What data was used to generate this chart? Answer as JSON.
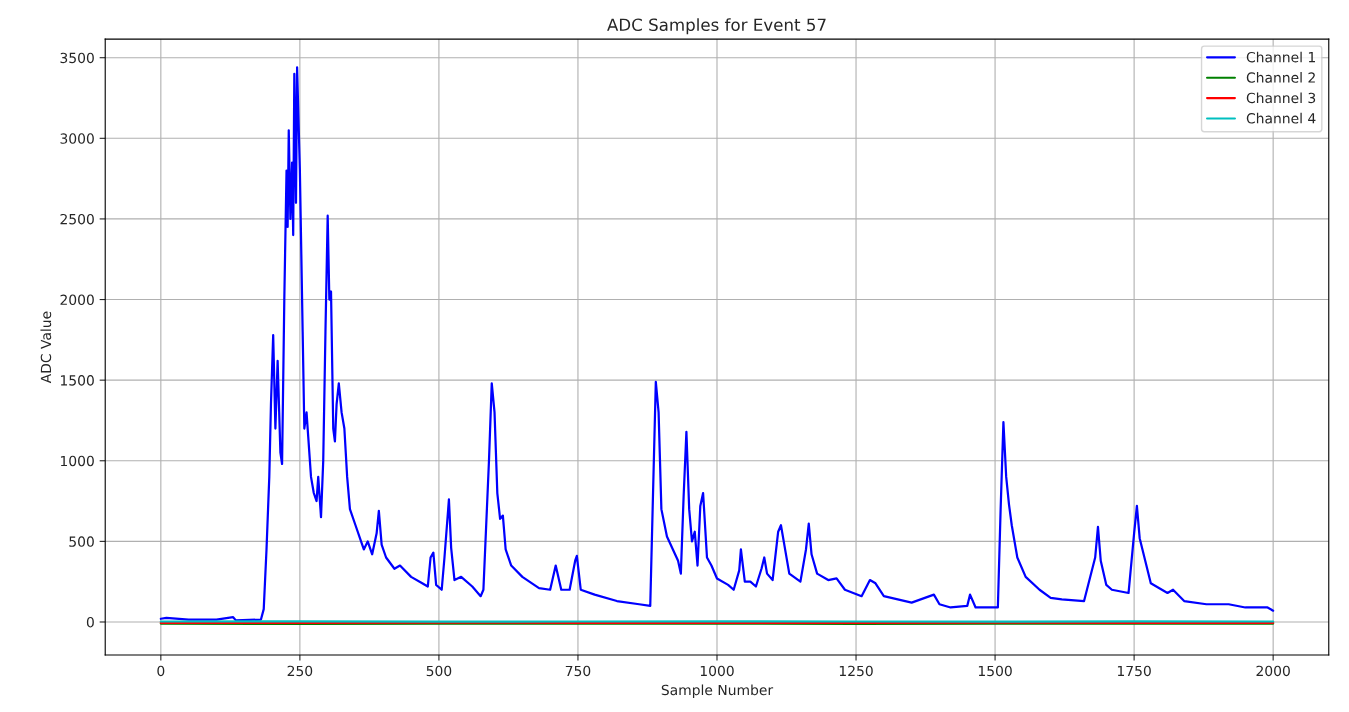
{
  "chart_data": {
    "type": "line",
    "title": "ADC Samples for Event 57",
    "xlabel": "Sample Number",
    "ylabel": "ADC Value",
    "xlim": [
      -100,
      2100
    ],
    "xticks": [
      0,
      250,
      500,
      750,
      1000,
      1250,
      1500,
      1750,
      2000
    ],
    "ylim": [
      -205,
      3615
    ],
    "yticks": [
      0,
      500,
      1000,
      1500,
      2000,
      2500,
      3000,
      3500
    ],
    "grid": true,
    "legend": "top right",
    "line_style": "solid",
    "marker": "none",
    "series": [
      {
        "name": "Channel 1",
        "color": "#0000ff",
        "x": [
          0,
          10,
          50,
          100,
          130,
          135,
          180,
          185,
          190,
          195,
          198,
          202,
          206,
          210,
          215,
          218,
          222,
          226,
          228,
          230,
          233,
          236,
          238,
          240,
          243,
          245,
          250,
          255,
          258,
          262,
          265,
          270,
          275,
          280,
          283,
          288,
          292,
          296,
          300,
          303,
          306,
          310,
          313,
          316,
          320,
          325,
          330,
          335,
          340,
          350,
          360,
          365,
          372,
          380,
          388,
          392,
          397,
          405,
          420,
          430,
          450,
          470,
          480,
          485,
          490,
          495,
          505,
          510,
          518,
          522,
          528,
          540,
          560,
          575,
          580,
          590,
          595,
          600,
          605,
          610,
          615,
          620,
          630,
          650,
          680,
          700,
          710,
          720,
          735,
          745,
          748,
          755,
          780,
          820,
          860,
          880,
          885,
          890,
          895,
          900,
          910,
          930,
          935,
          940,
          945,
          950,
          955,
          960,
          965,
          970,
          975,
          982,
          990,
          1000,
          1020,
          1030,
          1040,
          1043,
          1050,
          1060,
          1070,
          1080,
          1085,
          1090,
          1100,
          1110,
          1115,
          1120,
          1130,
          1150,
          1160,
          1165,
          1170,
          1180,
          1200,
          1215,
          1230,
          1260,
          1275,
          1285,
          1300,
          1350,
          1390,
          1400,
          1420,
          1450,
          1455,
          1465,
          1505,
          1510,
          1515,
          1520,
          1525,
          1530,
          1540,
          1555,
          1580,
          1600,
          1620,
          1660,
          1680,
          1685,
          1690,
          1700,
          1710,
          1740,
          1750,
          1755,
          1760,
          1770,
          1780,
          1800,
          1810,
          1820,
          1840,
          1880,
          1920,
          1950,
          1990,
          2000
        ],
        "values": [
          20,
          25,
          15,
          15,
          30,
          10,
          15,
          80,
          450,
          900,
          1350,
          1780,
          1200,
          1620,
          1050,
          980,
          2000,
          2800,
          2450,
          3050,
          2500,
          2850,
          2400,
          3400,
          2600,
          3440,
          2800,
          1800,
          1200,
          1300,
          1150,
          900,
          800,
          750,
          900,
          650,
          1000,
          1800,
          2520,
          2000,
          2050,
          1200,
          1120,
          1350,
          1480,
          1300,
          1200,
          900,
          700,
          600,
          500,
          450,
          500,
          420,
          550,
          690,
          480,
          400,
          330,
          350,
          280,
          240,
          220,
          400,
          430,
          230,
          200,
          400,
          760,
          460,
          260,
          280,
          220,
          160,
          200,
          1000,
          1480,
          1300,
          800,
          640,
          660,
          450,
          350,
          280,
          210,
          200,
          350,
          200,
          200,
          380,
          410,
          200,
          170,
          130,
          110,
          100,
          800,
          1490,
          1300,
          700,
          530,
          380,
          300,
          780,
          1180,
          700,
          500,
          560,
          350,
          720,
          800,
          400,
          350,
          270,
          230,
          200,
          320,
          450,
          250,
          250,
          220,
          330,
          400,
          300,
          260,
          560,
          600,
          500,
          300,
          250,
          450,
          610,
          420,
          300,
          260,
          270,
          200,
          160,
          260,
          240,
          160,
          120,
          170,
          110,
          90,
          100,
          170,
          90,
          90,
          700,
          1240,
          900,
          730,
          600,
          400,
          280,
          200,
          150,
          140,
          130,
          400,
          590,
          380,
          230,
          200,
          180,
          550,
          720,
          520,
          380,
          240,
          200,
          180,
          200,
          130,
          110,
          110,
          90,
          90,
          70
        ]
      },
      {
        "name": "Channel 2",
        "color": "#008000",
        "x": [
          0,
          250,
          500,
          750,
          1000,
          1250,
          1500,
          1750,
          2000
        ],
        "values": [
          -10,
          -12,
          -10,
          -11,
          -10,
          -12,
          -10,
          -11,
          -10
        ]
      },
      {
        "name": "Channel 3",
        "color": "#ff0000",
        "x": [
          0,
          250,
          500,
          750,
          1000,
          1250,
          1500,
          1750,
          2000
        ],
        "values": [
          -5,
          -6,
          -4,
          -5,
          -6,
          -5,
          -4,
          -6,
          -5
        ]
      },
      {
        "name": "Channel 4",
        "color": "#00bfbf",
        "x": [
          0,
          250,
          500,
          750,
          1000,
          1250,
          1500,
          1750,
          2000
        ],
        "values": [
          3,
          4,
          2,
          3,
          4,
          3,
          2,
          4,
          3
        ]
      }
    ]
  }
}
